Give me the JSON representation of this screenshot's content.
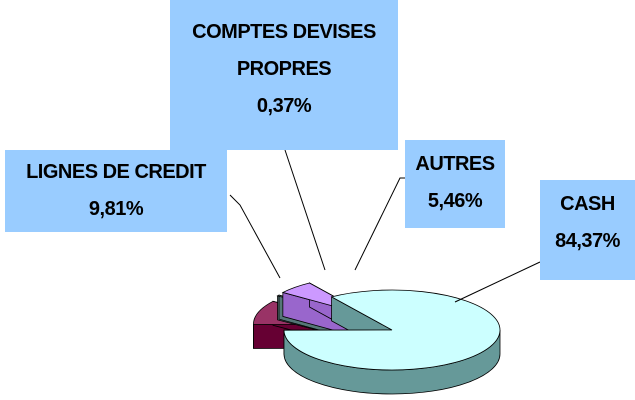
{
  "chart_data": {
    "type": "pie",
    "categories": [
      "CASH",
      "LIGNES DE CREDIT",
      "COMPTES DEVISES PROPRES",
      "AUTRES"
    ],
    "values": [
      84.37,
      9.81,
      0.37,
      5.46
    ],
    "value_labels": [
      "84,37%",
      "9,81%",
      "0,37%",
      "5,46%"
    ],
    "colors": [
      "#ccffff",
      "#993366",
      "#99b3b3",
      "#cc99ff"
    ],
    "side_colors": [
      "#669999",
      "#660033",
      "#557777",
      "#9966cc"
    ]
  }
}
